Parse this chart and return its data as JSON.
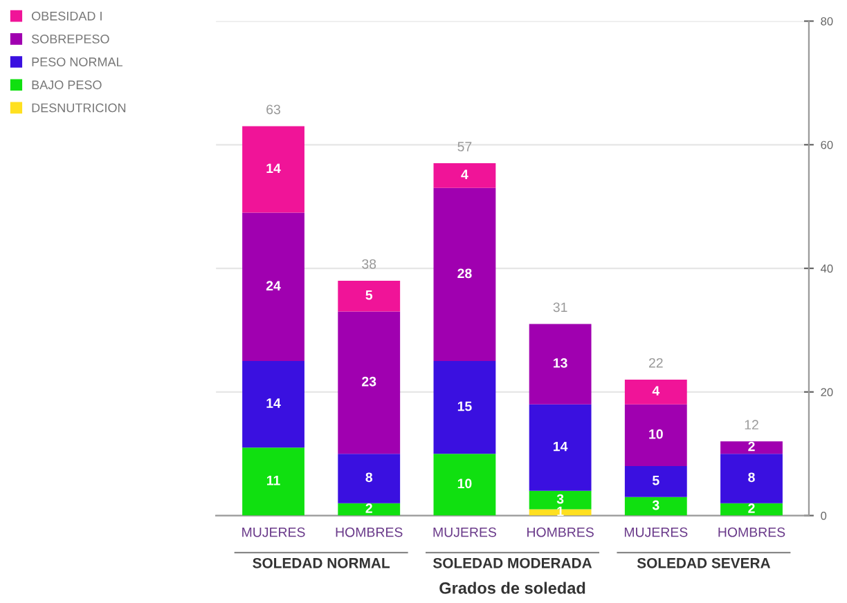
{
  "chart_data": {
    "type": "bar",
    "stacked": true,
    "xlabel": "Grados de soledad",
    "categories": [
      "MUJERES",
      "HOMBRES",
      "MUJERES",
      "HOMBRES",
      "MUJERES",
      "HOMBRES"
    ],
    "series": [
      {
        "name": "DESNUTRICION",
        "color": "#ffe020",
        "values": [
          null,
          null,
          null,
          1,
          null,
          null
        ]
      },
      {
        "name": "BAJO PESO",
        "color": "#10e010",
        "values": [
          11,
          2,
          10,
          3,
          3,
          2
        ]
      },
      {
        "name": "PESO NORMAL",
        "color": "#3a10e0",
        "values": [
          14,
          8,
          15,
          14,
          5,
          8
        ]
      },
      {
        "name": "SOBREPESO",
        "color": "#a000b0",
        "values": [
          24,
          23,
          28,
          13,
          10,
          2
        ]
      },
      {
        "name": "OBESIDAD I",
        "color": "#f01498",
        "values": [
          14,
          5,
          4,
          null,
          4,
          null
        ]
      }
    ],
    "totals": [
      "63",
      "38",
      "57",
      "31",
      "22",
      "12"
    ],
    "data_labels": true,
    "ylim": [
      0,
      80
    ],
    "yticks": [
      0,
      20,
      40,
      60,
      80
    ],
    "grid": "y",
    "legend": "top left",
    "annotations": [
      "SOLEDAD NORMAL",
      "SOLEDAD MODERADA",
      "SOLEDAD SEVERA"
    ]
  }
}
